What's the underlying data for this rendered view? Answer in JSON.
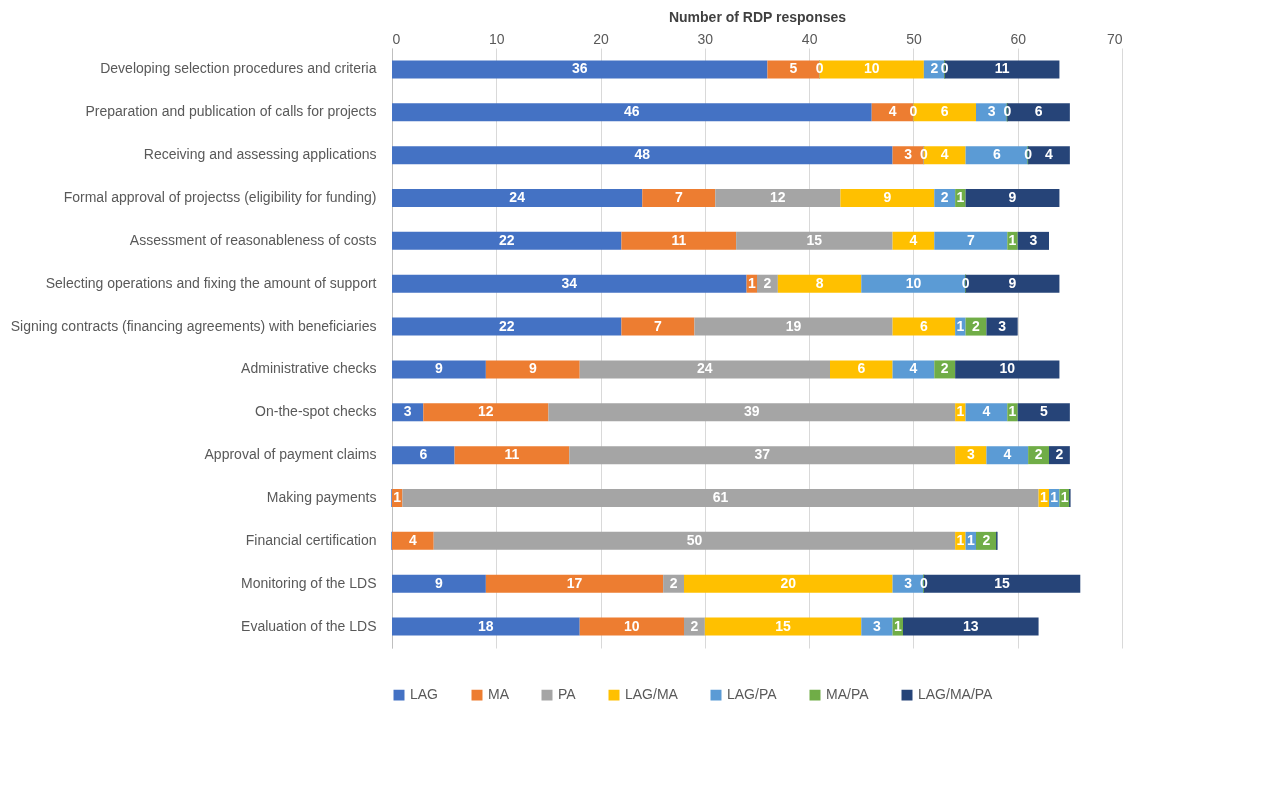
{
  "chart_data": {
    "type": "bar",
    "orientation": "horizontal",
    "stacked": true,
    "xlabel": "Number of RDP responses",
    "xlim": [
      0,
      70
    ],
    "xticks": [
      0,
      10,
      20,
      30,
      40,
      50,
      60,
      70
    ],
    "grid": "x",
    "legend": "bottom left",
    "categories": [
      "Developing selection procedures and criteria",
      "Preparation and publication of calls for projects",
      "Receiving and assessing applications",
      "Formal approval of projectss (eligibility for funding)",
      "Assessment of reasonableness of costs",
      "Selecting operations and fixing the amount of support",
      "Signing contracts (financing agreements) with beneficiaries",
      "Administrative checks",
      "On-the-spot checks",
      "Approval of payment claims",
      "Making payments",
      "Financial certification",
      "Monitoring of the LDS",
      "Evaluation of the LDS"
    ],
    "series": [
      {
        "name": "LAG",
        "color": "#4472c4",
        "values": [
          36,
          46,
          48,
          24,
          22,
          34,
          22,
          9,
          3,
          6,
          0,
          0,
          9,
          18
        ],
        "value_labels": [
          "36",
          "46",
          "48",
          "24",
          "22",
          "34",
          "22",
          "9",
          "3",
          "6",
          null,
          null,
          "9",
          "18"
        ]
      },
      {
        "name": "MA",
        "color": "#ed7d31",
        "values": [
          5,
          4,
          3,
          7,
          11,
          1,
          7,
          9,
          12,
          11,
          1,
          4,
          17,
          10
        ],
        "value_labels": [
          "5",
          "4",
          "3",
          "7",
          "11",
          "1",
          "7",
          "9",
          "12",
          "11",
          "1",
          "4",
          "17",
          "10"
        ]
      },
      {
        "name": "PA",
        "color": "#a5a5a5",
        "values": [
          0,
          0,
          0,
          12,
          15,
          2,
          19,
          24,
          39,
          37,
          61,
          50,
          2,
          2
        ],
        "value_labels": [
          "0",
          "0",
          "0",
          "12",
          "15",
          "2",
          "19",
          "24",
          "39",
          "37",
          "61",
          "50",
          "2",
          "2"
        ]
      },
      {
        "name": "LAG/MA",
        "color": "#ffc000",
        "values": [
          10,
          6,
          4,
          9,
          4,
          8,
          6,
          6,
          1,
          3,
          1,
          1,
          20,
          15
        ],
        "value_labels": [
          "10",
          "6",
          "4",
          "9",
          "4",
          "8",
          "6",
          "6",
          "1",
          "3",
          "1",
          "1",
          "20",
          "15"
        ]
      },
      {
        "name": "LAG/PA",
        "color": "#5b9bd5",
        "values": [
          2,
          3,
          6,
          2,
          7,
          10,
          1,
          4,
          4,
          4,
          1,
          1,
          3,
          3
        ],
        "value_labels": [
          "2",
          "3",
          "6",
          "2",
          "7",
          "10",
          "1",
          "4",
          "4",
          "4",
          "1",
          "1",
          "3",
          "3"
        ]
      },
      {
        "name": "MA/PA",
        "color": "#70ad47",
        "values": [
          0,
          0,
          0,
          1,
          1,
          0,
          2,
          2,
          1,
          2,
          1,
          2,
          0,
          1
        ],
        "value_labels": [
          "0",
          "0",
          "0",
          "1",
          "1",
          "0",
          "2",
          "2",
          "1",
          "2",
          "1",
          "2",
          "0",
          "1"
        ]
      },
      {
        "name": "LAG/MA/PA",
        "color": "#264478",
        "values": [
          11,
          6,
          4,
          9,
          3,
          9,
          3,
          10,
          5,
          2,
          0,
          0,
          15,
          13
        ],
        "value_labels": [
          "11",
          "6",
          "4",
          "9",
          "3",
          "9",
          "3",
          "10",
          "5",
          "2",
          null,
          null,
          "15",
          "13"
        ]
      }
    ]
  }
}
